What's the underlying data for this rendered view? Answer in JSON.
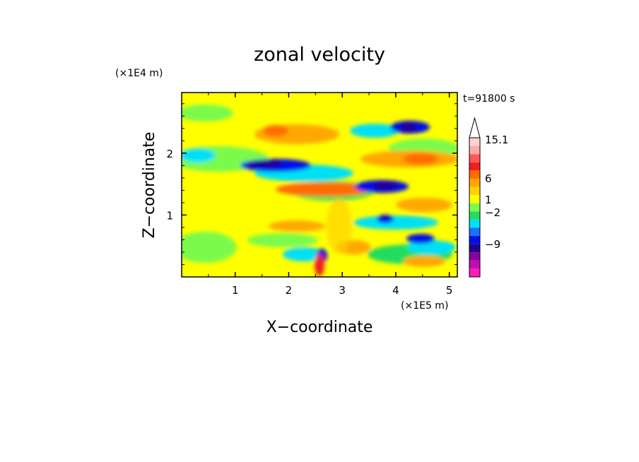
{
  "chart_data": {
    "type": "heatmap",
    "title": "zonal velocity",
    "xlabel": "X−coordinate",
    "ylabel": "Z−coordinate",
    "x_unit": "(×1E5 m)",
    "y_unit": "(×1E4 m)",
    "time_label": "t=91800 s",
    "xlim": [
      0,
      5.15
    ],
    "ylim": [
      0,
      2.98
    ],
    "x_ticks": [
      "1",
      "2",
      "3",
      "4",
      "5"
    ],
    "x_tick_values": [
      1,
      2,
      3,
      4,
      5
    ],
    "y_ticks": [
      "1",
      "2"
    ],
    "y_tick_values": [
      1,
      2
    ],
    "colorbar": {
      "colors": [
        "#ff1aba",
        "#c40cb4",
        "#8a00a0",
        "#20008e",
        "#0010e6",
        "#1e70ff",
        "#00e0f4",
        "#22dc5e",
        "#7cfa4c",
        "#ffff00",
        "#ffd200",
        "#ffa800",
        "#ff6c00",
        "#ee2020",
        "#ff5858",
        "#ffaaaa",
        "#ffd2d2"
      ],
      "tick_labels": [
        "15.1",
        "6",
        "1",
        "−2",
        "−9"
      ],
      "tick_values": [
        15.1,
        6,
        1,
        -2,
        -9
      ],
      "extend_top": true
    },
    "field_description": "Wave-like zonal velocity pattern with tilted bands; strong negative (blue) bands near z≈1.8 at x≈1.4–2.2 and z≈1.4 at x≈3.4–4.0; positive (orange/red) bands interleaved; chaotic mixed region near x≈2.5–3.2 with a red/blue stem at the bottom."
  }
}
